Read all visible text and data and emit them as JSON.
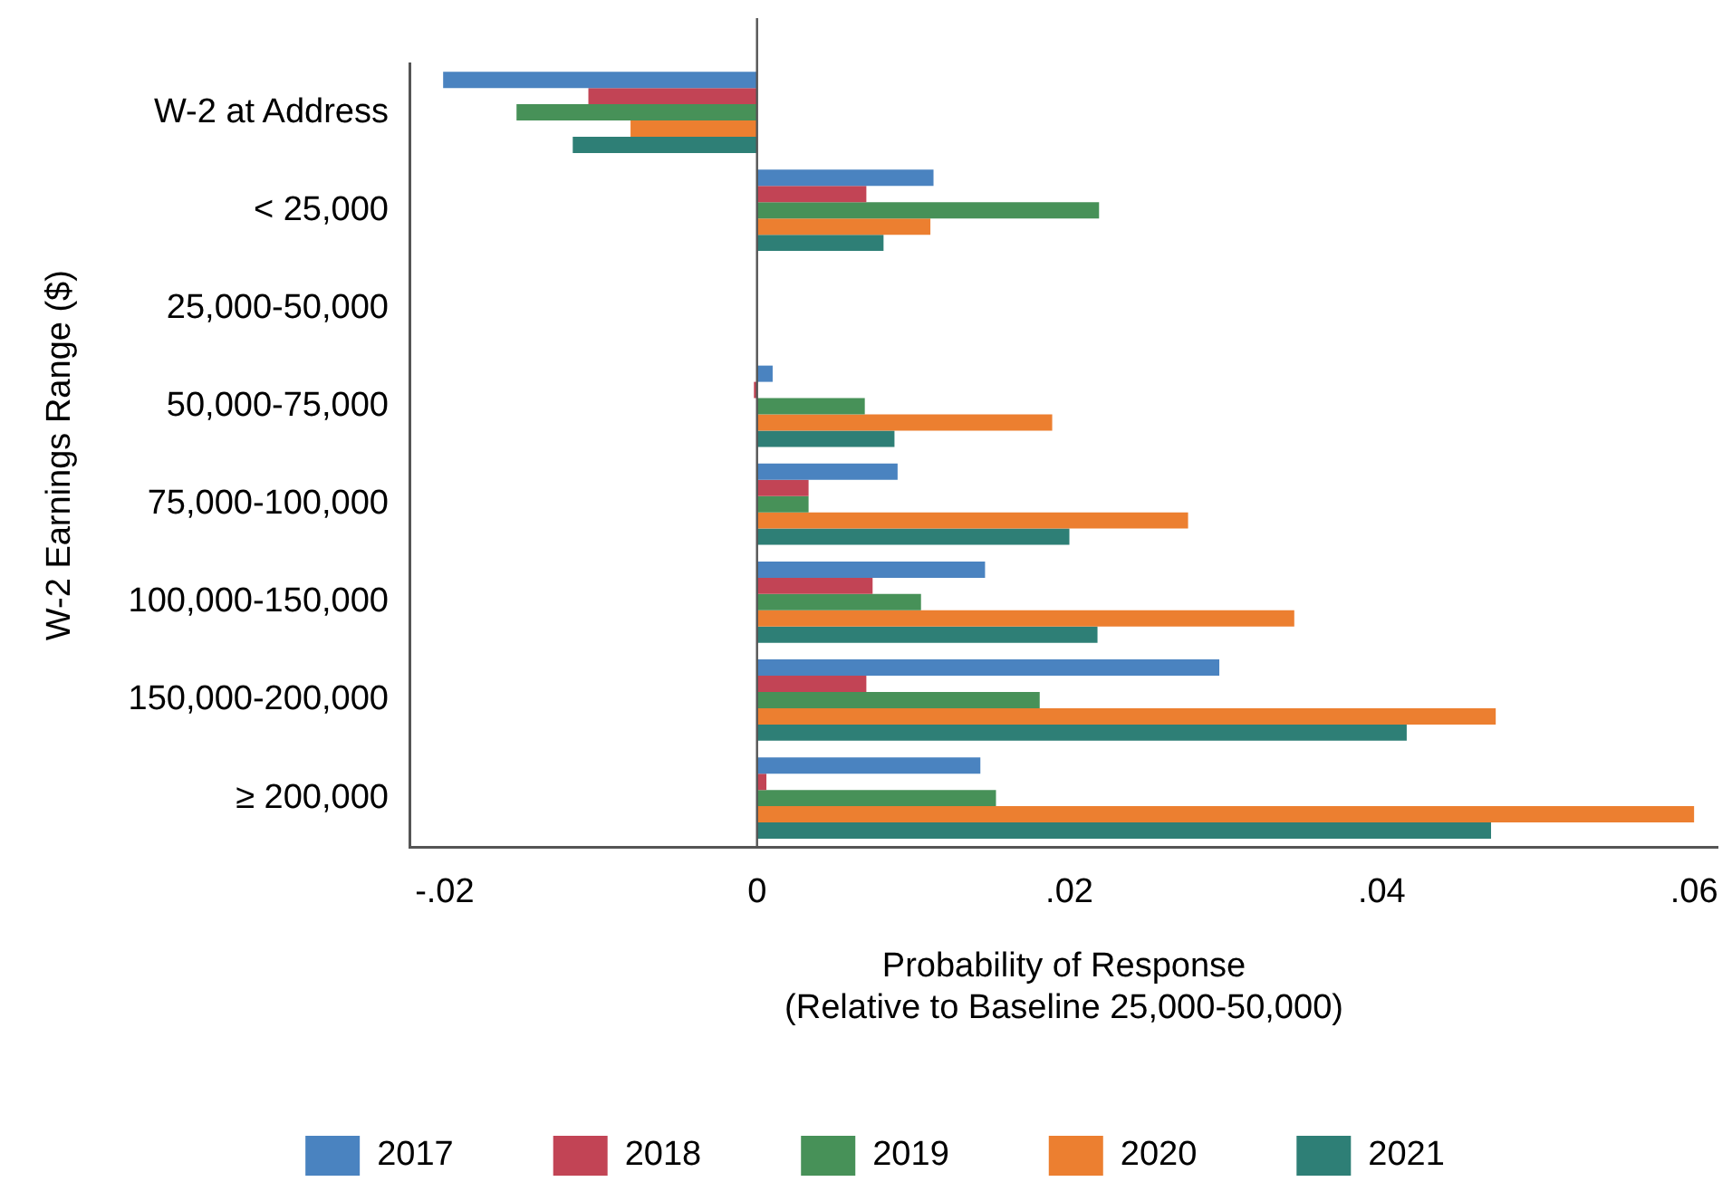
{
  "chart_data": {
    "type": "bar",
    "orientation": "horizontal",
    "ylabel": "W-2 Earnings Range ($)",
    "xlabel": "Probability of Response\n(Relative to Baseline 25,000-50,000)",
    "categories": [
      "W-2 at Address",
      "< 25,000",
      "25,000-50,000",
      "50,000-75,000",
      "75,000-100,000",
      "100,000-150,000",
      "150,000-200,000",
      "≥ 200,000"
    ],
    "series": [
      {
        "name": "2017",
        "color": "#4a83c0",
        "values": [
          -0.0201,
          0.0113,
          null,
          0.001,
          0.009,
          0.0146,
          0.0296,
          0.0143
        ]
      },
      {
        "name": "2018",
        "color": "#c24455",
        "values": [
          -0.0108,
          0.007,
          null,
          -0.0002,
          0.0033,
          0.0074,
          0.007,
          0.0006
        ]
      },
      {
        "name": "2019",
        "color": "#479158",
        "values": [
          -0.0154,
          0.0219,
          null,
          0.0069,
          0.0033,
          0.0105,
          0.0181,
          0.0153
        ]
      },
      {
        "name": "2020",
        "color": "#ec7f30",
        "values": [
          -0.0081,
          0.0111,
          null,
          0.0189,
          0.0276,
          0.0344,
          0.0473,
          0.06
        ]
      },
      {
        "name": "2021",
        "color": "#2e7f76",
        "values": [
          -0.0118,
          0.0081,
          null,
          0.0088,
          0.02,
          0.0218,
          0.0416,
          0.047
        ]
      }
    ],
    "xlim": [
      -0.0222,
      0.0615
    ],
    "xticks": [
      {
        "value": -0.02,
        "label": "-.02"
      },
      0,
      {
        "value": 0.02,
        "label": ".02"
      },
      {
        "value": 0.04,
        "label": ".04"
      },
      {
        "value": 0.06,
        "label": ".06"
      }
    ],
    "ref_lines": [
      {
        "axis": "x",
        "value": 0,
        "color": "#555555"
      }
    ],
    "grid": false,
    "legend": "bottom"
  }
}
